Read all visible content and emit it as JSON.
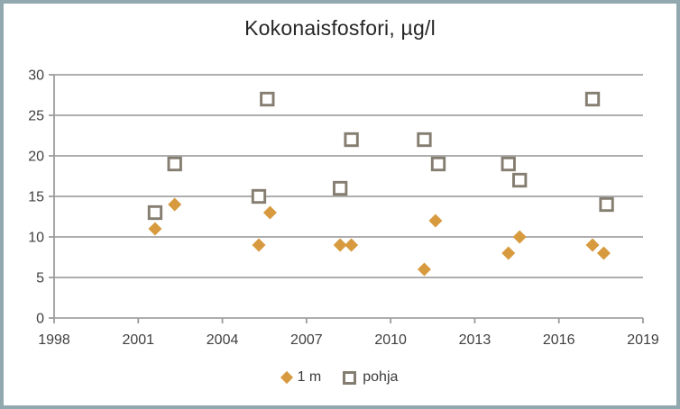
{
  "window": {
    "border_color": "#90A8AE",
    "background_color": "#FFFFFF"
  },
  "colors": {
    "gridline": "#A3A3A3",
    "axis": "#9C9C9C",
    "tick_label_text": "#404040",
    "title_text": "#262626",
    "series_1m": "#D79A3F",
    "series_pohja": "#847D70"
  },
  "chart_data": {
    "type": "scatter",
    "title": "Kokonaisfosfori, µg/l",
    "xlabel": "",
    "ylabel": "",
    "xlim": [
      1998,
      2019
    ],
    "ylim": [
      0,
      30
    ],
    "x_ticks": [
      "1998",
      "2001",
      "2004",
      "2007",
      "2010",
      "2013",
      "2016",
      "2019"
    ],
    "x_tick_values": [
      1998,
      2001,
      2004,
      2007,
      2010,
      2013,
      2016,
      2019
    ],
    "y_ticks": [
      "0",
      "5",
      "10",
      "15",
      "20",
      "25",
      "30"
    ],
    "y_tick_values": [
      0,
      5,
      10,
      15,
      20,
      25,
      30
    ],
    "grid": "horizontal-only",
    "legend_position": "bottom-center",
    "series": [
      {
        "name": "1 m",
        "marker": "filled-diamond",
        "color": "#D79A3F",
        "points": [
          [
            2001.6,
            11
          ],
          [
            2002.3,
            14
          ],
          [
            2005.3,
            9
          ],
          [
            2005.7,
            13
          ],
          [
            2008.2,
            9
          ],
          [
            2008.6,
            9
          ],
          [
            2011.2,
            6
          ],
          [
            2011.6,
            12
          ],
          [
            2014.2,
            8
          ],
          [
            2014.6,
            10
          ],
          [
            2017.2,
            9
          ],
          [
            2017.6,
            8
          ]
        ]
      },
      {
        "name": "pohja",
        "marker": "hollow-square",
        "color": "#847D70",
        "points": [
          [
            2001.6,
            13
          ],
          [
            2002.3,
            19
          ],
          [
            2005.3,
            15
          ],
          [
            2005.6,
            27
          ],
          [
            2008.2,
            16
          ],
          [
            2008.6,
            22
          ],
          [
            2011.2,
            22
          ],
          [
            2011.7,
            19
          ],
          [
            2014.2,
            19
          ],
          [
            2014.6,
            17
          ],
          [
            2017.2,
            27
          ],
          [
            2017.7,
            14
          ]
        ]
      }
    ]
  }
}
